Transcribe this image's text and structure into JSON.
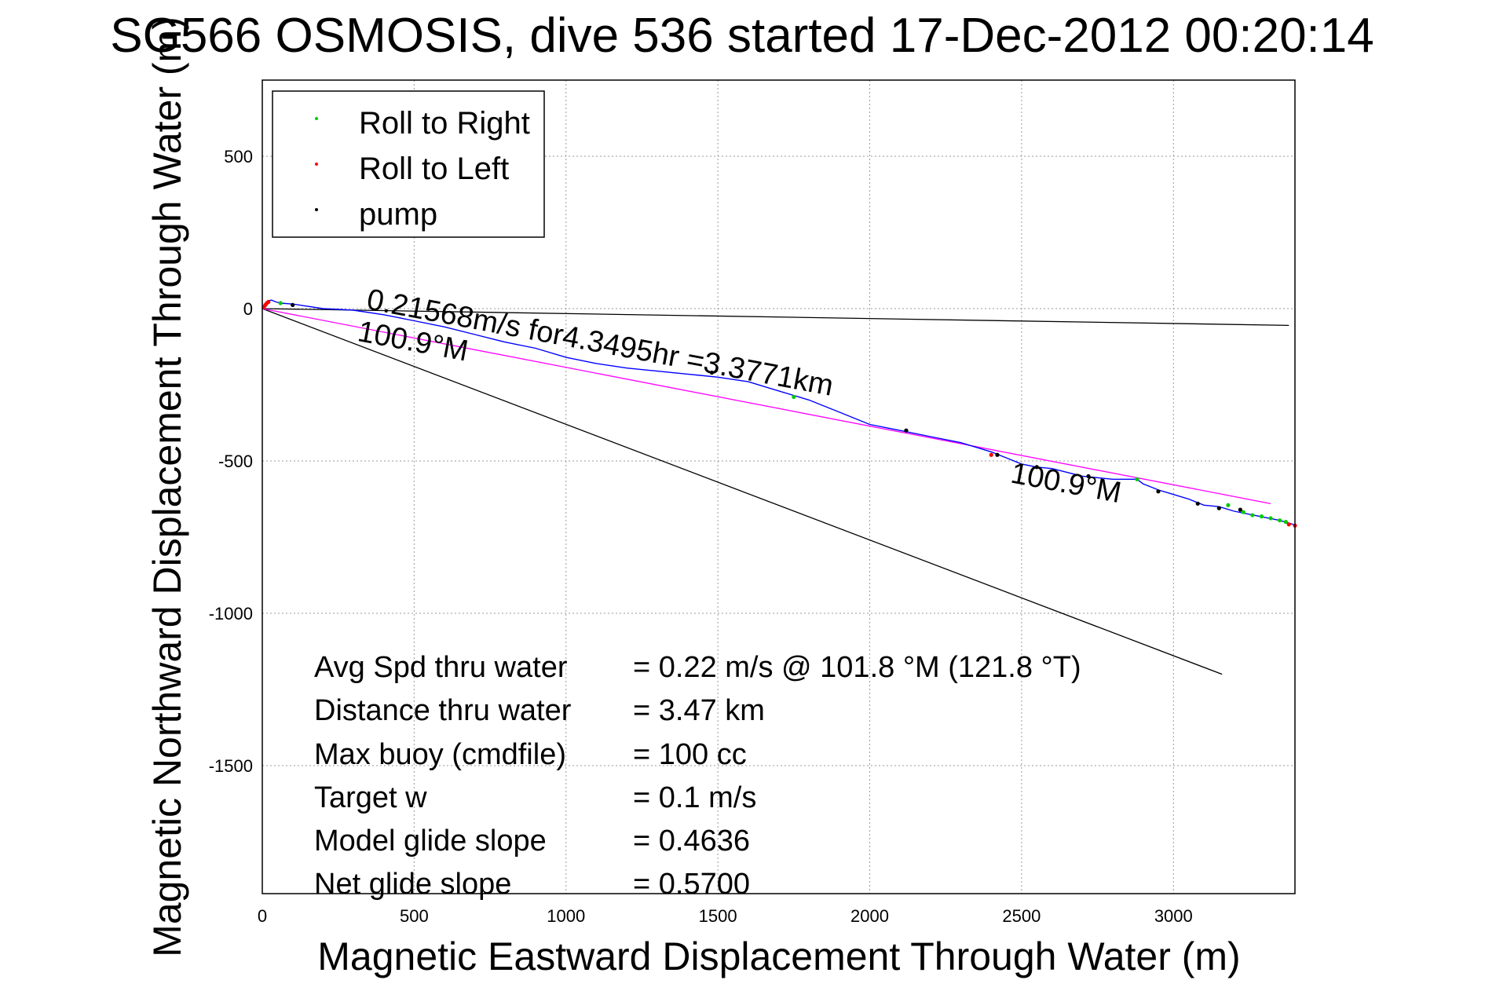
{
  "chart_data": {
    "type": "line",
    "title": "SG566 OSMOSIS, dive 536 started 17-Dec-2012 00:20:14",
    "xlabel": "Magnetic Eastward Displacement Through Water (m)",
    "ylabel": "Magnetic Northward Displacement Through Water (m)",
    "xlim": [
      0,
      3400
    ],
    "ylim": [
      -1920,
      750
    ],
    "xticks": [
      "0",
      "500",
      "1000",
      "1500",
      "2000",
      "2500",
      "3000"
    ],
    "yticks": [
      "500",
      "0",
      "-500",
      "-1000",
      "-1500"
    ],
    "grid": true,
    "legend": {
      "placement": "top-left",
      "entries": [
        {
          "label": "Roll to Right",
          "color": "#00cc00"
        },
        {
          "label": "Roll to Left",
          "color": "#ff0000"
        },
        {
          "label": "pump",
          "color": "#000000"
        }
      ]
    },
    "track": {
      "color": "#0000ff",
      "x": [
        0,
        10,
        20,
        30,
        45,
        60,
        100,
        200,
        300,
        400,
        500,
        600,
        700,
        800,
        900,
        1000,
        1100,
        1200,
        1300,
        1400,
        1500,
        1600,
        1700,
        1800,
        1900,
        2000,
        2100,
        2200,
        2300,
        2400,
        2450,
        2500,
        2550,
        2600,
        2700,
        2800,
        2880,
        2900,
        2950,
        3000,
        3050,
        3100,
        3150,
        3200,
        3250,
        3300,
        3350,
        3400
      ],
      "y": [
        0,
        15,
        25,
        28,
        22,
        18,
        15,
        0,
        -5,
        -20,
        -40,
        -60,
        -85,
        -110,
        -130,
        -160,
        -180,
        -195,
        -205,
        -215,
        -225,
        -240,
        -270,
        -300,
        -340,
        -380,
        -400,
        -420,
        -440,
        -470,
        -490,
        -510,
        -520,
        -525,
        -550,
        -560,
        -560,
        -575,
        -595,
        -610,
        -625,
        -645,
        -650,
        -665,
        -675,
        -685,
        -695,
        -710
      ]
    },
    "markers": {
      "roll_right": {
        "color": "#00cc00",
        "x": [
          60,
          1750,
          2880,
          3180,
          3230,
          3260,
          3290,
          3320,
          3350,
          3370
        ],
        "y": [
          18,
          -290,
          -560,
          -645,
          -668,
          -678,
          -682,
          -688,
          -695,
          -700
        ]
      },
      "roll_left": {
        "color": "#ff0000",
        "x": [
          5,
          10,
          15,
          20,
          2400,
          3380,
          3400
        ],
        "y": [
          5,
          12,
          18,
          22,
          -480,
          -708,
          -712
        ]
      },
      "pump": {
        "color": "#000000",
        "x": [
          100,
          1480,
          2120,
          2420,
          2550,
          2720,
          2950,
          3080,
          3150,
          3220
        ],
        "y": [
          12,
          -210,
          -400,
          -480,
          -520,
          -550,
          -600,
          -640,
          -655,
          -660
        ]
      }
    },
    "reference_lines": [
      {
        "name": "heading_line_1",
        "color": "#000000",
        "x": [
          0,
          3380
        ],
        "y": [
          0,
          -55
        ]
      },
      {
        "name": "heading_line_2",
        "color": "#000000",
        "x": [
          0,
          3160
        ],
        "y": [
          0,
          -1200
        ]
      },
      {
        "name": "average_line",
        "color": "#ff00ff",
        "x": [
          0,
          3320
        ],
        "y": [
          0,
          -640
        ]
      }
    ],
    "annotations": [
      {
        "text": "0.21568m/s for4.3495hr =3.3771km",
        "x": 340,
        "y": 0,
        "rotate": 10.6
      },
      {
        "text": "100.9°M",
        "x": 310,
        "y": -105,
        "rotate": 10.6
      },
      {
        "text": "100.9°M",
        "x": 2460,
        "y": -570,
        "rotate": 10.6
      }
    ],
    "stats": [
      {
        "label": "Avg Spd thru water",
        "value": "=  0.22 m/s @ 101.8 °M (121.8 °T)"
      },
      {
        "label": "Distance thru water",
        "value": "=  3.47 km"
      },
      {
        "label": "Max buoy (cmdfile)",
        "value": "= 100 cc"
      },
      {
        "label": "Target w",
        "value": "= 0.1 m/s"
      },
      {
        "label": "Model glide slope",
        "value": "= 0.4636"
      },
      {
        "label": "Net glide slope",
        "value": "= 0.5700"
      }
    ]
  }
}
